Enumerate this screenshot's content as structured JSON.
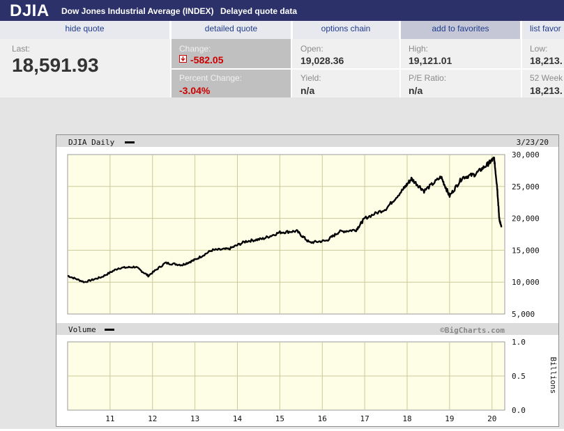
{
  "header": {
    "symbol": "DJIA",
    "name": "Dow Jones Industrial Average (INDEX)",
    "delay_note": "Delayed quote data"
  },
  "tabs": [
    "hide quote",
    "detailed quote",
    "options chain",
    "add to favorites",
    "list favor"
  ],
  "quote": {
    "last_label": "Last:",
    "last_value": "18,591.93",
    "change_label": "Change:",
    "change_value": "-582.05",
    "pct_label": "Percent Change:",
    "pct_value": "-3.04%",
    "open_label": "Open:",
    "open_value": "19,028.36",
    "yield_label": "Yield:",
    "yield_value": "n/a",
    "high_label": "High:",
    "high_value": "19,121.01",
    "pe_label": "P/E Ratio:",
    "pe_value": "n/a",
    "low_label": "Low:",
    "low_value": "18,213.",
    "week52_label": "52 Week",
    "week52_value": "18,213."
  },
  "colors": {
    "header_bg": "#2c3269",
    "plot_bg": "#fefee6",
    "negative": "#cc0000",
    "link": "#1f3b8c"
  },
  "chart_data": {
    "type": "line",
    "title": "DJIA Daily",
    "date": "3/23/20",
    "watermark": "©BigCharts.com",
    "price": {
      "ylim": [
        5000,
        30000
      ],
      "y_ticks": [
        "30,000",
        "25,000",
        "20,000",
        "15,000",
        "10,000",
        "5,000"
      ],
      "x": [
        2010.0,
        2010.4,
        2010.8,
        2011.2,
        2011.6,
        2011.9,
        2012.3,
        2012.7,
        2013.0,
        2013.4,
        2013.8,
        2014.2,
        2014.6,
        2015.0,
        2015.4,
        2015.7,
        2016.1,
        2016.4,
        2016.8,
        2017.0,
        2017.5,
        2017.9,
        2018.1,
        2018.4,
        2018.8,
        2019.0,
        2019.3,
        2019.6,
        2019.9,
        2020.05,
        2020.12,
        2020.17,
        2020.22
      ],
      "values": [
        11000,
        10000,
        10800,
        12200,
        12400,
        11000,
        13000,
        12700,
        13500,
        15000,
        15200,
        16400,
        16800,
        17800,
        18000,
        16200,
        16500,
        17900,
        18200,
        20000,
        21500,
        24500,
        26200,
        24300,
        26500,
        23500,
        26400,
        26900,
        28500,
        29400,
        25000,
        20000,
        18600
      ]
    },
    "volume": {
      "title": "Volume",
      "ylim": [
        0.0,
        1.0
      ],
      "y_ticks": [
        "1.0",
        "0.5",
        "0.0"
      ],
      "ylabel": "Billions"
    },
    "x_ticks": [
      "11",
      "12",
      "13",
      "14",
      "15",
      "16",
      "17",
      "18",
      "19",
      "20"
    ],
    "grid": true
  }
}
